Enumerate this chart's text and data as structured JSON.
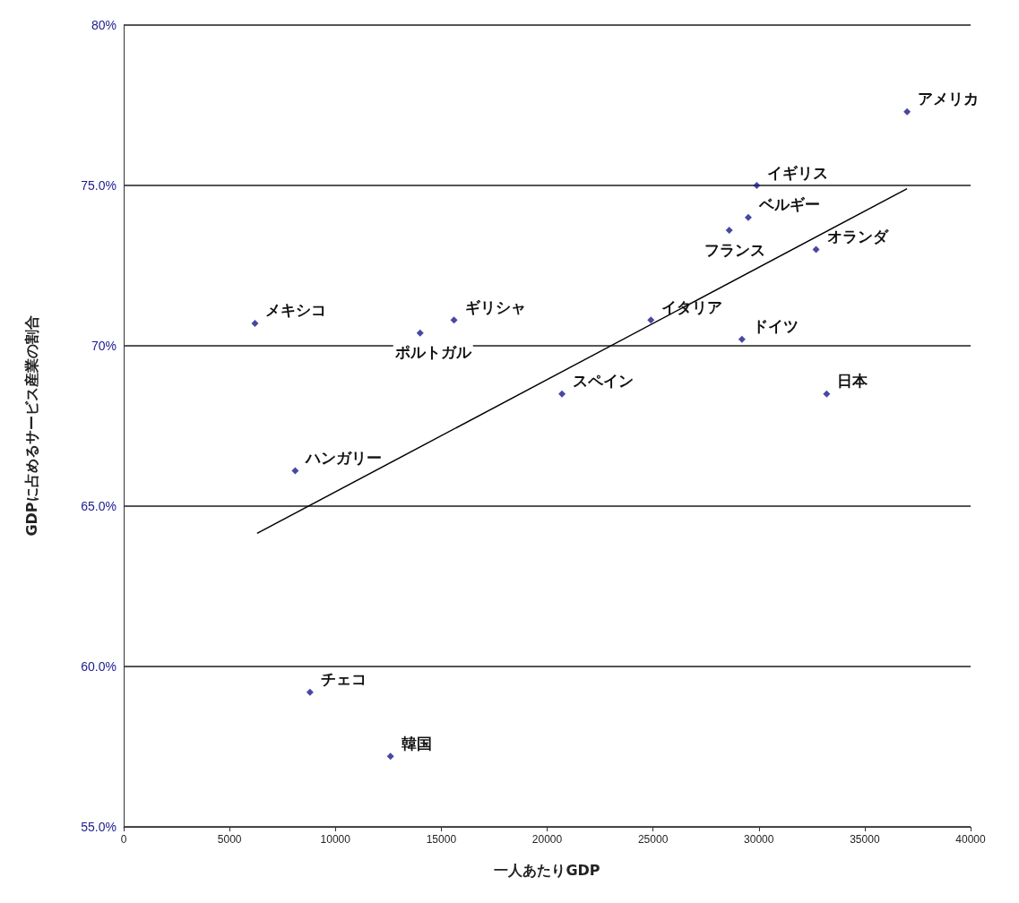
{
  "chart_data": {
    "type": "scatter",
    "xlabel": "一人あたりGDP",
    "ylabel": "GDPに占めるサービス産業の割合",
    "x": [
      37000,
      29900,
      29500,
      28600,
      32700,
      6200,
      15600,
      14000,
      24900,
      29200,
      33200,
      20700,
      8100,
      8800,
      12600
    ],
    "series": [
      {
        "color": "#1a1a8c",
        "marker": "diamond",
        "values": [
          77.3,
          75.0,
          74.0,
          73.6,
          73.0,
          70.7,
          70.8,
          70.4,
          70.8,
          70.2,
          68.5,
          68.5,
          66.1,
          59.2,
          57.2
        ]
      },
      {
        "type": "line",
        "color": "#000000",
        "x": [
          6300,
          37000
        ],
        "values": [
          64.15,
          74.9
        ]
      }
    ],
    "annotations": [
      {
        "text": "アメリカ",
        "x": 37000,
        "y": 77.3
      },
      {
        "text": "イギリス",
        "x": 29900,
        "y": 75.0
      },
      {
        "text": "ベルギー",
        "x": 29500,
        "y": 74.0
      },
      {
        "text": "フランス",
        "x": 28600,
        "y": 73.6
      },
      {
        "text": "オランダ",
        "x": 32700,
        "y": 73.0
      },
      {
        "text": "メキシコ",
        "x": 6200,
        "y": 70.7
      },
      {
        "text": "ギリシャ",
        "x": 15600,
        "y": 70.8
      },
      {
        "text": "ポルトガル",
        "x": 14000,
        "y": 70.4
      },
      {
        "text": "イタリア",
        "x": 24900,
        "y": 70.8
      },
      {
        "text": "ドイツ",
        "x": 29200,
        "y": 70.2
      },
      {
        "text": "日本",
        "x": 33200,
        "y": 68.5
      },
      {
        "text": "スペイン",
        "x": 20700,
        "y": 68.5
      },
      {
        "text": "ハンガリー",
        "x": 8100,
        "y": 66.1
      },
      {
        "text": "チェコ",
        "x": 8800,
        "y": 59.2
      },
      {
        "text": "韓国",
        "x": 12600,
        "y": 57.2
      }
    ],
    "xlim": [
      0,
      40000
    ],
    "xticks": [
      0,
      5000,
      10000,
      15000,
      20000,
      25000,
      30000,
      35000,
      40000
    ],
    "ylim": [
      55,
      80
    ],
    "yticks": [
      {
        "value": 55,
        "label": "55.0%"
      },
      {
        "value": 60,
        "label": "60.0%"
      },
      {
        "value": 65,
        "label": "65.0%"
      },
      {
        "value": 70,
        "label": "70%"
      },
      {
        "value": 75,
        "label": "75.0%"
      },
      {
        "value": 80,
        "label": "80%"
      }
    ],
    "grid": "y"
  }
}
